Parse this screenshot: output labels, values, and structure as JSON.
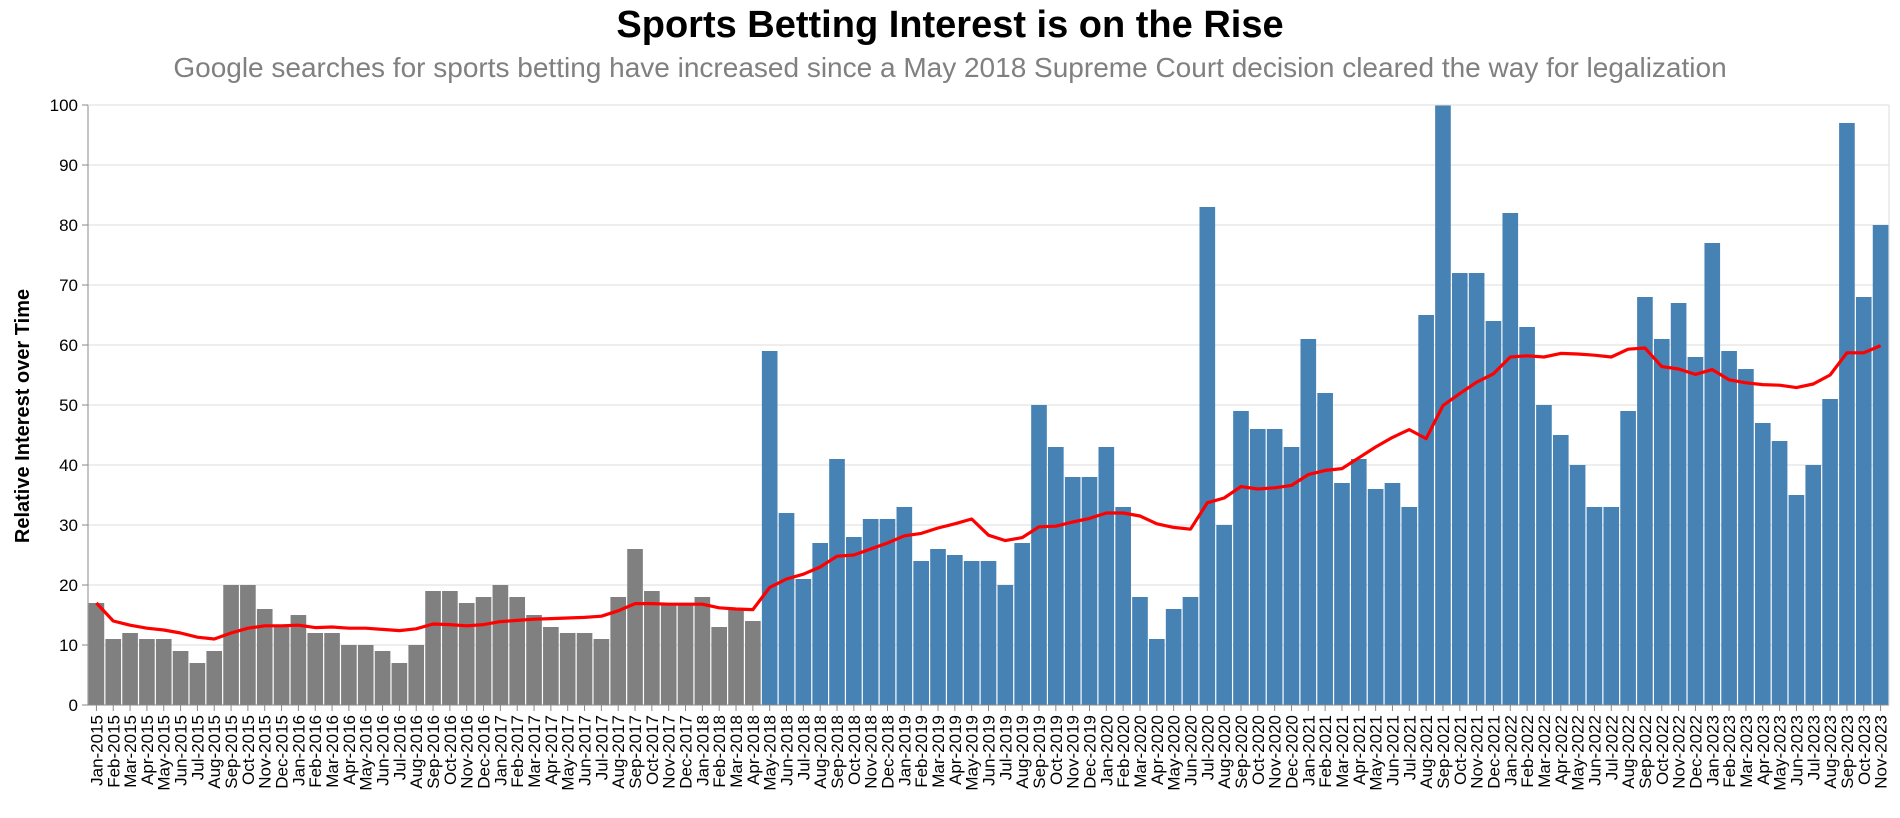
{
  "chart_data": {
    "type": "bar",
    "title": "Sports Betting Interest is on the Rise",
    "subtitle": "Google searches for sports betting have increased since a May 2018 Supreme Court decision cleared the way for legalization",
    "ylabel": "Relative Interest over Time",
    "xlabel": "",
    "ylim": [
      0,
      100
    ],
    "yticks": [
      0,
      10,
      20,
      30,
      40,
      50,
      60,
      70,
      80,
      90,
      100
    ],
    "grid": true,
    "colors": {
      "before": "#808080",
      "after": "#4682b4",
      "trend": "#ff0000",
      "grid": "#dddddd",
      "axis": "#888888"
    },
    "legalization_index": 40,
    "categories": [
      "Jan-2015",
      "Feb-2015",
      "Mar-2015",
      "Apr-2015",
      "May-2015",
      "Jun-2015",
      "Jul-2015",
      "Aug-2015",
      "Sep-2015",
      "Oct-2015",
      "Nov-2015",
      "Dec-2015",
      "Jan-2016",
      "Feb-2016",
      "Mar-2016",
      "Apr-2016",
      "May-2016",
      "Jun-2016",
      "Jul-2016",
      "Aug-2016",
      "Sep-2016",
      "Oct-2016",
      "Nov-2016",
      "Dec-2016",
      "Jan-2017",
      "Feb-2017",
      "Mar-2017",
      "Apr-2017",
      "May-2017",
      "Jun-2017",
      "Jul-2017",
      "Aug-2017",
      "Sep-2017",
      "Oct-2017",
      "Nov-2017",
      "Dec-2017",
      "Jan-2018",
      "Feb-2018",
      "Mar-2018",
      "Apr-2018",
      "May-2018",
      "Jun-2018",
      "Jul-2018",
      "Aug-2018",
      "Sep-2018",
      "Oct-2018",
      "Nov-2018",
      "Dec-2018",
      "Jan-2019",
      "Feb-2019",
      "Mar-2019",
      "Apr-2019",
      "May-2019",
      "Jun-2019",
      "Jul-2019",
      "Aug-2019",
      "Sep-2019",
      "Oct-2019",
      "Nov-2019",
      "Dec-2019",
      "Jan-2020",
      "Feb-2020",
      "Mar-2020",
      "Apr-2020",
      "May-2020",
      "Jun-2020",
      "Jul-2020",
      "Aug-2020",
      "Sep-2020",
      "Oct-2020",
      "Nov-2020",
      "Dec-2020",
      "Jan-2021",
      "Feb-2021",
      "Mar-2021",
      "Apr-2021",
      "May-2021",
      "Jun-2021",
      "Jul-2021",
      "Aug-2021",
      "Sep-2021",
      "Oct-2021",
      "Nov-2021",
      "Dec-2021",
      "Jan-2022",
      "Feb-2022",
      "Mar-2022",
      "Apr-2022",
      "May-2022",
      "Jun-2022",
      "Jul-2022",
      "Aug-2022",
      "Sep-2022",
      "Oct-2022",
      "Nov-2022",
      "Dec-2022",
      "Jan-2023",
      "Feb-2023",
      "Mar-2023",
      "Apr-2023",
      "May-2023",
      "Jun-2023",
      "Jul-2023",
      "Aug-2023",
      "Sep-2023",
      "Oct-2023",
      "Nov-2023"
    ],
    "series": [
      {
        "type": "bar",
        "values": [
          17,
          11,
          12,
          11,
          11,
          9,
          7,
          9,
          20,
          20,
          16,
          13,
          15,
          12,
          12,
          10,
          10,
          9,
          7,
          10,
          19,
          19,
          17,
          18,
          20,
          18,
          15,
          13,
          12,
          12,
          11,
          18,
          26,
          19,
          17,
          17,
          18,
          13,
          16,
          14,
          59,
          32,
          21,
          27,
          41,
          28,
          31,
          31,
          33,
          24,
          26,
          25,
          24,
          24,
          20,
          27,
          50,
          43,
          38,
          38,
          43,
          33,
          18,
          11,
          16,
          18,
          83,
          30,
          49,
          46,
          46,
          43,
          61,
          52,
          37,
          41,
          36,
          37,
          33,
          65,
          100,
          72,
          72,
          64,
          82,
          63,
          50,
          45,
          40,
          33,
          33,
          49,
          68,
          61,
          67,
          58,
          77,
          59,
          56,
          47,
          44,
          35,
          40,
          51,
          97,
          68,
          80
        ]
      },
      {
        "type": "line",
        "values": [
          17,
          14,
          13.3,
          12.8,
          12.5,
          12,
          11.3,
          11,
          12,
          12.8,
          13.2,
          13.2,
          13.3,
          12.9,
          13,
          12.8,
          12.8,
          12.6,
          12.4,
          12.7,
          13.5,
          13.4,
          13.2,
          13.4,
          13.9,
          14.1,
          14.3,
          14.4,
          14.5,
          14.6,
          14.8,
          15.7,
          16.9,
          16.9,
          16.8,
          16.8,
          16.8,
          16.2,
          16,
          15.9,
          19.6,
          21,
          21.8,
          23,
          24.8,
          25,
          26,
          27,
          28.2,
          28.6,
          29.5,
          30.2,
          31,
          28.3,
          27.4,
          27.9,
          29.7,
          29.8,
          30.5,
          31.1,
          32,
          32,
          31.5,
          30.2,
          29.6,
          29.3,
          33.7,
          34.5,
          36.4,
          36,
          36.2,
          36.6,
          38.4,
          39.1,
          39.4,
          41.2,
          43,
          44.6,
          45.9,
          44.4,
          49.9,
          51.9,
          53.8,
          55.2,
          58,
          58.2,
          58,
          58.6,
          58.5,
          58.3,
          58,
          59.3,
          59.5,
          56.4,
          56,
          55.1,
          55.9,
          54.2,
          53.7,
          53.4,
          53.3,
          52.9,
          53.5,
          55,
          58.7,
          58.7,
          59.9
        ]
      }
    ]
  }
}
